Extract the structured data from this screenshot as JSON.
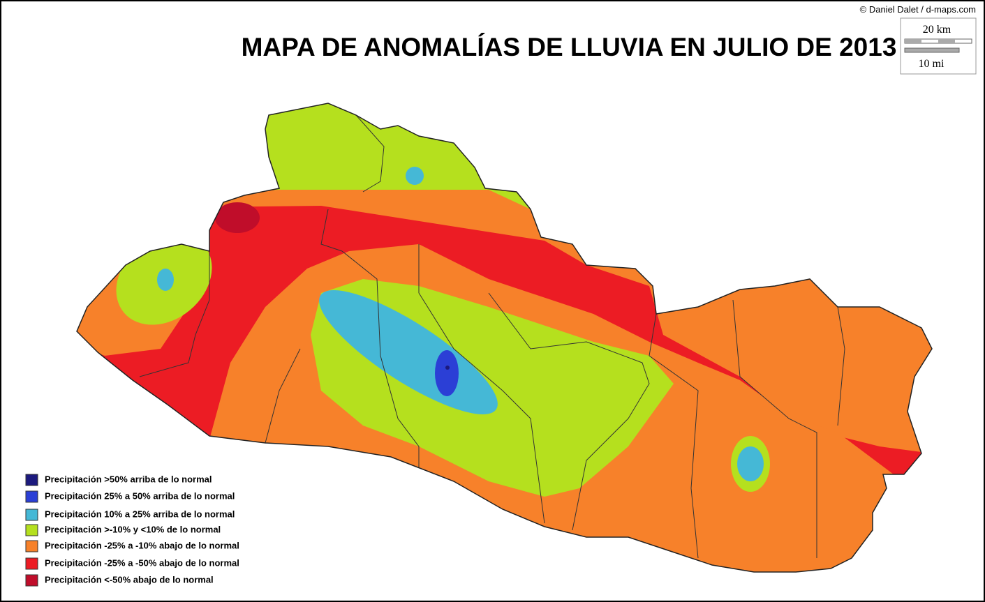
{
  "title": "MAPA DE ANOMALÍAS DE LLUVIA EN JULIO DE 2013",
  "credit": "© Daniel Dalet / d-maps.com",
  "scale": {
    "km": "20 km",
    "mi": "10 mi"
  },
  "legend": [
    {
      "label": "Precipitación >50% arriba de lo normal",
      "color": "#1c1a7e"
    },
    {
      "label": "Precipitación 25% a 50% arriba de lo normal",
      "color": "#2b3fd6"
    },
    {
      "label": "Precipitación 10% a 25% arriba de lo normal",
      "color": "#45b8d6"
    },
    {
      "label": "Precipitación >-10% y <10% de lo normal",
      "color": "#b5e01e"
    },
    {
      "label": "Precipitación -25% a -10% abajo de lo normal",
      "color": "#f7812a"
    },
    {
      "label": "Precipitación -25% a -50% abajo de lo normal",
      "color": "#ec1c24"
    },
    {
      "label": "Precipitación <-50% abajo de lo normal",
      "color": "#c00d2a"
    }
  ]
}
